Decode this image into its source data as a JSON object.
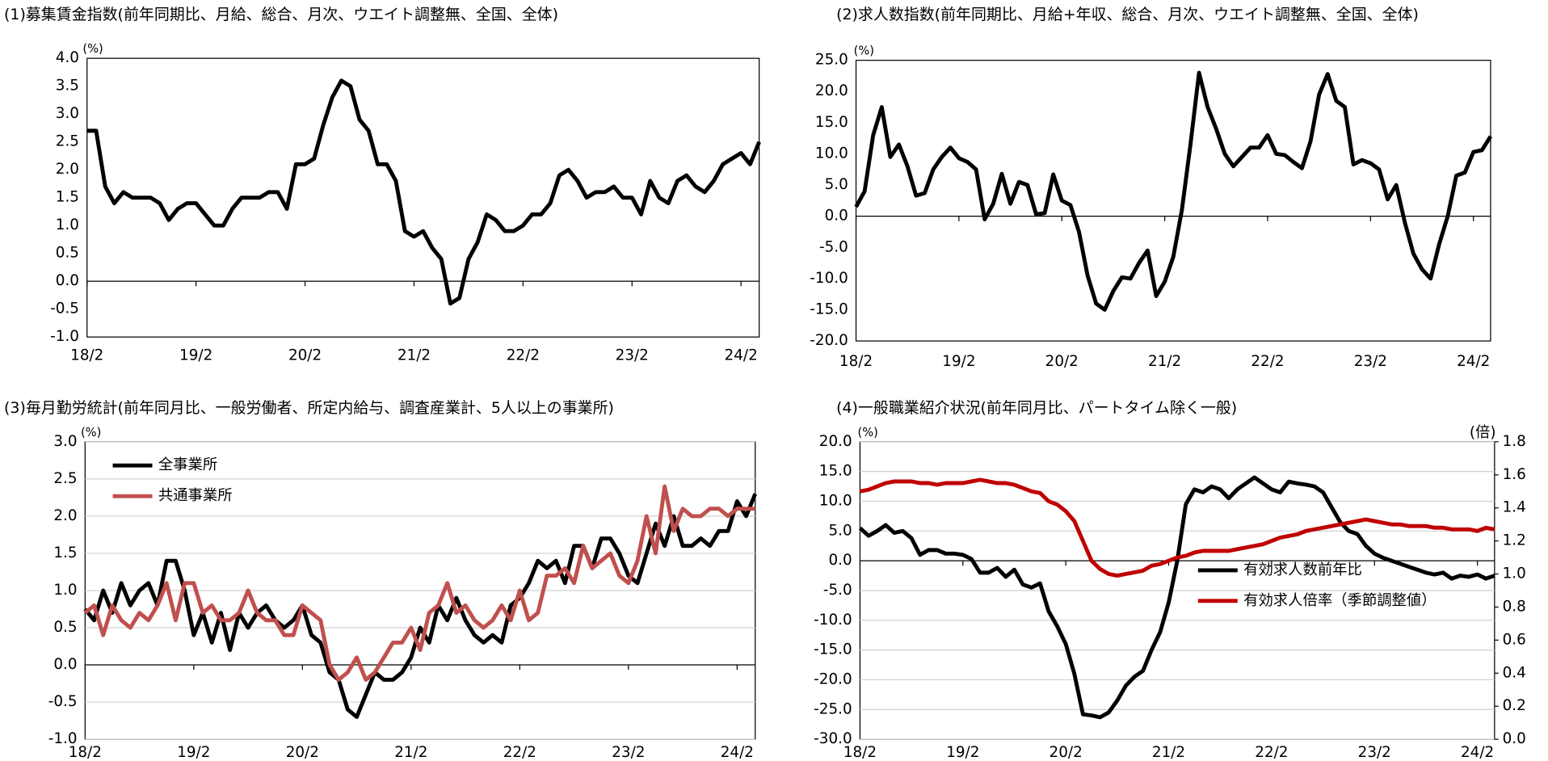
{
  "chart_data": [
    {
      "type": "line",
      "title": "(1)募集賃金指数(前年同期比、月給、総合、月次、ウエイト調整無、全国、全体)",
      "y_unit": "(%)",
      "categories": [
        "18/2",
        null,
        null,
        null,
        null,
        null,
        null,
        null,
        null,
        null,
        null,
        null,
        "19/2",
        null,
        null,
        null,
        null,
        null,
        null,
        null,
        null,
        null,
        null,
        null,
        "20/2",
        null,
        null,
        null,
        null,
        null,
        null,
        null,
        null,
        null,
        null,
        null,
        "21/2",
        null,
        null,
        null,
        null,
        null,
        null,
        null,
        null,
        null,
        null,
        null,
        "22/2",
        null,
        null,
        null,
        null,
        null,
        null,
        null,
        null,
        null,
        null,
        null,
        "23/2",
        null,
        null,
        null,
        null,
        null,
        null,
        null,
        null,
        null,
        null,
        null,
        "24/2",
        null,
        null
      ],
      "series": [
        {
          "name": null,
          "color": "#000000",
          "values": [
            2.7,
            2.7,
            1.7,
            1.4,
            1.6,
            1.5,
            1.5,
            1.5,
            1.4,
            1.1,
            1.3,
            1.4,
            1.4,
            1.2,
            1.0,
            1.0,
            1.3,
            1.5,
            1.5,
            1.5,
            1.6,
            1.6,
            1.3,
            2.1,
            2.1,
            2.2,
            2.8,
            3.3,
            3.6,
            3.5,
            2.9,
            2.7,
            2.1,
            2.1,
            1.8,
            0.9,
            0.8,
            0.9,
            0.6,
            0.4,
            -0.4,
            -0.3,
            0.4,
            0.7,
            1.2,
            1.1,
            0.9,
            0.9,
            1.0,
            1.2,
            1.2,
            1.4,
            1.9,
            2.0,
            1.8,
            1.5,
            1.6,
            1.6,
            1.7,
            1.5,
            1.5,
            1.2,
            1.8,
            1.5,
            1.4,
            1.8,
            1.9,
            1.7,
            1.6,
            1.8,
            2.1,
            2.2,
            2.3,
            2.1,
            2.5
          ]
        }
      ],
      "ylim": [
        -1.0,
        4.0
      ],
      "yticks": [
        {
          "value": 4.0,
          "label": "4.0"
        },
        3.5,
        {
          "value": 3.0,
          "label": "3.0"
        },
        2.5,
        {
          "value": 2.0,
          "label": "2.0"
        },
        1.5,
        {
          "value": 1.0,
          "label": "1.0"
        },
        0.5,
        {
          "value": 0.0,
          "label": "0.0"
        },
        -0.5,
        {
          "value": -1.0,
          "label": "-1.0"
        }
      ],
      "grid": false
    },
    {
      "type": "line",
      "title": "(2)求人数指数(前年同期比、月給+年収、総合、月次、ウエイト調整無、全国、全体)",
      "y_unit": "(%)",
      "categories": [
        "18/2",
        null,
        null,
        null,
        null,
        null,
        null,
        null,
        null,
        null,
        null,
        null,
        "19/2",
        null,
        null,
        null,
        null,
        null,
        null,
        null,
        null,
        null,
        null,
        null,
        "20/2",
        null,
        null,
        null,
        null,
        null,
        null,
        null,
        null,
        null,
        null,
        null,
        "21/2",
        null,
        null,
        null,
        null,
        null,
        null,
        null,
        null,
        null,
        null,
        null,
        "22/2",
        null,
        null,
        null,
        null,
        null,
        null,
        null,
        null,
        null,
        null,
        null,
        "23/2",
        null,
        null,
        null,
        null,
        null,
        null,
        null,
        null,
        null,
        null,
        null,
        "24/2",
        null,
        null
      ],
      "series": [
        {
          "name": null,
          "color": "#000000",
          "values": [
            1.5,
            4,
            13,
            17.5,
            9.5,
            11.5,
            8,
            3.3,
            3.7,
            7.5,
            9.5,
            11,
            9.3,
            8.7,
            7.5,
            -0.5,
            2,
            6.8,
            2,
            5.5,
            5,
            0.3,
            0.5,
            6.7,
            2.5,
            1.8,
            -2.5,
            -9.5,
            -14,
            -15,
            -12,
            -9.8,
            -10,
            -7.5,
            -5.5,
            -12.8,
            -10.5,
            -6.5,
            1,
            11.5,
            23,
            17.5,
            14,
            10,
            8,
            9.5,
            11,
            11,
            13,
            10,
            9.8,
            8.7,
            7.7,
            12,
            19.5,
            22.8,
            18.5,
            17.5,
            8.3,
            9,
            8.5,
            7.5,
            2.7,
            5,
            -1,
            -6,
            -8.5,
            -10,
            -4.5,
            0,
            6.5,
            7,
            10.3,
            10.6,
            12.8
          ]
        }
      ],
      "ylim": [
        -20.0,
        25.0
      ],
      "yticks": [
        {
          "value": 25,
          "label": "25.0"
        },
        {
          "value": 20,
          "label": "20.0"
        },
        {
          "value": 15,
          "label": "15.0"
        },
        {
          "value": 10,
          "label": "10.0"
        },
        {
          "value": 5,
          "label": "5.0"
        },
        {
          "value": 0,
          "label": "0.0"
        },
        {
          "value": -5,
          "label": "-5.0"
        },
        {
          "value": -10,
          "label": "-10.0"
        },
        {
          "value": -15,
          "label": "-15.0"
        },
        {
          "value": -20,
          "label": "-20.0"
        }
      ],
      "grid": false
    },
    {
      "type": "line",
      "title": "(3)毎月勤労統計(前年同月比、一般労働者、所定内給与、調査産業計、5人以上の事業所)",
      "y_unit": "(%)",
      "legend": "upper left",
      "categories": [
        "18/2",
        null,
        null,
        null,
        null,
        null,
        null,
        null,
        null,
        null,
        null,
        null,
        "19/2",
        null,
        null,
        null,
        null,
        null,
        null,
        null,
        null,
        null,
        null,
        null,
        "20/2",
        null,
        null,
        null,
        null,
        null,
        null,
        null,
        null,
        null,
        null,
        null,
        "21/2",
        null,
        null,
        null,
        null,
        null,
        null,
        null,
        null,
        null,
        null,
        null,
        "22/2",
        null,
        null,
        null,
        null,
        null,
        null,
        null,
        null,
        null,
        null,
        null,
        "23/2",
        null,
        null,
        null,
        null,
        null,
        null,
        null,
        null,
        null,
        null,
        null,
        "24/2",
        null,
        null
      ],
      "series": [
        {
          "name": "全事業所",
          "color": "#000000",
          "values": [
            0.75,
            0.6,
            1.0,
            0.7,
            1.1,
            0.8,
            1.0,
            1.1,
            0.8,
            1.4,
            1.4,
            1.0,
            0.4,
            0.7,
            0.3,
            0.7,
            0.2,
            0.7,
            0.5,
            0.7,
            0.8,
            0.6,
            0.5,
            0.6,
            0.8,
            0.4,
            0.3,
            -0.1,
            -0.2,
            -0.6,
            -0.7,
            -0.4,
            -0.1,
            -0.2,
            -0.2,
            -0.1,
            0.1,
            0.5,
            0.3,
            0.8,
            0.6,
            0.9,
            0.6,
            0.4,
            0.3,
            0.4,
            0.3,
            0.8,
            0.9,
            1.1,
            1.4,
            1.3,
            1.4,
            1.1,
            1.6,
            1.6,
            1.3,
            1.7,
            1.7,
            1.5,
            1.2,
            1.1,
            1.5,
            1.9,
            1.6,
            2.0,
            1.6,
            1.6,
            1.7,
            1.6,
            1.8,
            1.8,
            2.2,
            2.0,
            2.3
          ]
        },
        {
          "name": "共通事業所",
          "color": "#c0504d",
          "values": [
            0.7,
            0.8,
            0.4,
            0.8,
            0.6,
            0.5,
            0.7,
            0.6,
            0.8,
            1.1,
            0.6,
            1.1,
            1.1,
            0.7,
            0.8,
            0.6,
            0.6,
            0.7,
            1.0,
            0.7,
            0.6,
            0.6,
            0.4,
            0.4,
            0.8,
            0.7,
            0.6,
            0.0,
            -0.2,
            -0.1,
            0.1,
            -0.2,
            -0.1,
            0.1,
            0.3,
            0.3,
            0.5,
            0.2,
            0.7,
            0.8,
            1.1,
            0.7,
            0.8,
            0.6,
            0.5,
            0.6,
            0.8,
            0.6,
            1.0,
            0.6,
            0.7,
            1.2,
            1.2,
            1.3,
            1.1,
            1.6,
            1.3,
            1.4,
            1.5,
            1.2,
            1.1,
            1.4,
            2.0,
            1.5,
            2.4,
            1.8,
            2.1,
            2.0,
            2.0,
            2.1,
            2.1,
            2.0,
            2.1,
            2.1,
            2.1
          ]
        }
      ],
      "ylim": [
        -1.0,
        3.0
      ],
      "yticks": [
        {
          "value": 3.0,
          "label": "3.0"
        },
        2.5,
        {
          "value": 2.0,
          "label": "2.0"
        },
        1.5,
        {
          "value": 1.0,
          "label": "1.0"
        },
        0.5,
        {
          "value": 0.0,
          "label": "0.0"
        },
        -0.5,
        {
          "value": -1.0,
          "label": "-1.0"
        }
      ],
      "grid": true
    },
    {
      "type": "line",
      "title": "(4)一般職業紹介状況(前年同月比、パートタイム除く一般)",
      "y_unit": "(%)",
      "y2_unit": "(倍)",
      "legend": "center right",
      "categories": [
        "18/2",
        null,
        null,
        null,
        null,
        null,
        null,
        null,
        null,
        null,
        null,
        null,
        "19/2",
        null,
        null,
        null,
        null,
        null,
        null,
        null,
        null,
        null,
        null,
        null,
        "20/2",
        null,
        null,
        null,
        null,
        null,
        null,
        null,
        null,
        null,
        null,
        null,
        "21/2",
        null,
        null,
        null,
        null,
        null,
        null,
        null,
        null,
        null,
        null,
        null,
        "22/2",
        null,
        null,
        null,
        null,
        null,
        null,
        null,
        null,
        null,
        null,
        null,
        "23/2",
        null,
        null,
        null,
        null,
        null,
        null,
        null,
        null,
        null,
        null,
        null,
        "24/2",
        null,
        null
      ],
      "series": [
        {
          "name": "有効求人数前年比",
          "color": "#000000",
          "values": [
            5.5,
            4.2,
            5,
            6,
            4.7,
            5,
            3.8,
            1,
            1.8,
            1.8,
            1.2,
            1.2,
            1,
            0.3,
            -2,
            -2,
            -1.2,
            -2.7,
            -1.5,
            -4,
            -4.5,
            -3.8,
            -8.5,
            -11,
            -14,
            -19,
            -25.8,
            -26,
            -26.3,
            -25.5,
            -23.5,
            -21,
            -19.5,
            -18.5,
            -15,
            -12,
            -7,
            0,
            9.5,
            12,
            11.5,
            12.5,
            12,
            10.5,
            12,
            13,
            14,
            13,
            12,
            11.5,
            13.3,
            13,
            12.8,
            12.5,
            11.5,
            9,
            6.5,
            5,
            4.5,
            2.5,
            1.2,
            0.5,
            0,
            -0.5,
            -1,
            -1.5,
            -2,
            -2.3,
            -2,
            -3,
            -2.5,
            -2.7,
            -2.3,
            -3,
            -2.5
          ]
        },
        {
          "name": "有効求人倍率（季節調整値）",
          "color": "#c00000",
          "axis": "y2",
          "values": [
            1.5,
            1.51,
            1.53,
            1.55,
            1.56,
            1.56,
            1.56,
            1.55,
            1.55,
            1.54,
            1.55,
            1.55,
            1.55,
            1.56,
            1.57,
            1.56,
            1.55,
            1.55,
            1.54,
            1.52,
            1.5,
            1.49,
            1.44,
            1.42,
            1.38,
            1.32,
            1.2,
            1.08,
            1.03,
            1.0,
            0.99,
            1.0,
            1.01,
            1.02,
            1.05,
            1.06,
            1.08,
            1.1,
            1.11,
            1.13,
            1.14,
            1.14,
            1.14,
            1.14,
            1.15,
            1.16,
            1.17,
            1.18,
            1.2,
            1.22,
            1.23,
            1.24,
            1.26,
            1.27,
            1.28,
            1.29,
            1.3,
            1.31,
            1.32,
            1.33,
            1.32,
            1.31,
            1.3,
            1.3,
            1.29,
            1.29,
            1.29,
            1.28,
            1.28,
            1.27,
            1.27,
            1.27,
            1.26,
            1.28,
            1.27
          ]
        }
      ],
      "ylim": [
        -30.0,
        20.0
      ],
      "yticks": [
        {
          "value": 20,
          "label": "20.0"
        },
        {
          "value": 15,
          "label": "15.0"
        },
        {
          "value": 10,
          "label": "10.0"
        },
        {
          "value": 5,
          "label": "5.0"
        },
        {
          "value": 0,
          "label": "0.0"
        },
        {
          "value": -5,
          "label": "-5.0"
        },
        {
          "value": -10,
          "label": "-10.0"
        },
        {
          "value": -15,
          "label": "-15.0"
        },
        {
          "value": -20,
          "label": "-20.0"
        },
        {
          "value": -25,
          "label": "-25.0"
        },
        {
          "value": -30,
          "label": "-30.0"
        }
      ],
      "y2lim": [
        0.0,
        1.8
      ],
      "y2ticks": [
        1.8,
        1.6,
        1.4,
        1.2,
        {
          "value": 1.0,
          "label": "1.0"
        },
        0.8,
        0.6,
        0.4,
        0.2,
        {
          "value": 0.0,
          "label": "0.0"
        }
      ],
      "grid": true
    }
  ]
}
